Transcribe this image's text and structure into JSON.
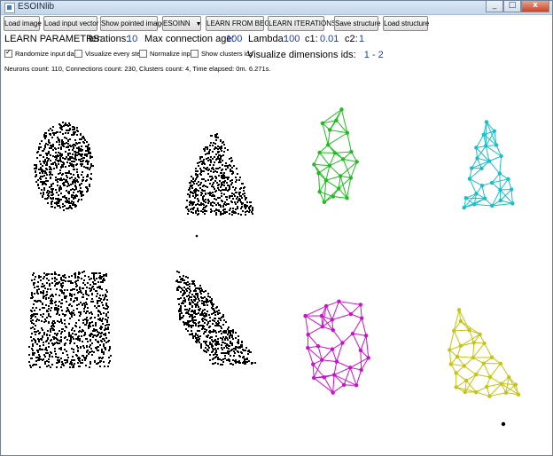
{
  "window": {
    "title": "ESOINlib",
    "controls": [
      "_",
      "□",
      "x"
    ]
  },
  "toolbar": {
    "load_image": "Load image",
    "load_input_vector": "Load input vector",
    "show_pointed_image": "Show pointed image",
    "algorithm_select": "ESOINN",
    "learn_from_begin": "LEARN FROM BEGIN",
    "learn_iterations": "LEARN ITERATIONS",
    "save_structure": "Save structure",
    "load_structure": "Load structure"
  },
  "params": {
    "heading": "LEARN PARAMETRS:",
    "iterations_label": "Iterations:",
    "iterations_value": "10",
    "max_age_label": "Max connection age:",
    "max_age_value": "100",
    "lambda_label": "Lambda:",
    "lambda_value": "100",
    "c1_label": "c1:",
    "c1_value": "0.01",
    "c2_label": "c2:",
    "c2_value": "1"
  },
  "options": {
    "randomize": {
      "label": "Randomize input data",
      "checked": true
    },
    "visualize_every_step": {
      "label": "Visualize every step",
      "checked": false
    },
    "normalize_input": {
      "label": "Normalize input",
      "checked": false
    },
    "show_cluster_ids": {
      "label": "Show clusters ids",
      "checked": false
    }
  },
  "visualize": {
    "label": "Visualize dimensions ids:",
    "value": "1 - 2"
  },
  "status": "Neurons count: 110, Connections count: 230, Clusters count: 4, Time elapsed: 0m. 6.271s.",
  "colors": {
    "input_points": "#000000",
    "cluster_green": "#22bb22",
    "cluster_cyan": "#19bfc8",
    "cluster_magenta": "#cc11cc",
    "cluster_yellow": "#c4c412",
    "param_value": "#1f3fa0"
  }
}
